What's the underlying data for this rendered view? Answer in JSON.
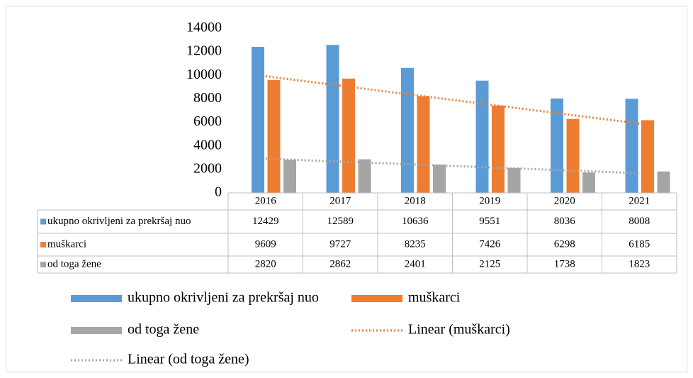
{
  "chart_data": {
    "type": "bar",
    "categories": [
      "2016",
      "2017",
      "2018",
      "2019",
      "2020",
      "2021"
    ],
    "series": [
      {
        "name": "ukupno okrivljeni za prekršaj nuo",
        "color": "#5b9bd5",
        "values": [
          12429,
          12589,
          10636,
          9551,
          8036,
          8008
        ]
      },
      {
        "name": "muškarci",
        "color": "#ed7d31",
        "values": [
          9609,
          9727,
          8235,
          7426,
          6298,
          6185
        ],
        "trendline": {
          "type": "linear",
          "name": "Linear (muškarci)"
        }
      },
      {
        "name": "od toga žene",
        "color": "#a5a5a5",
        "values": [
          2820,
          2862,
          2401,
          2125,
          1738,
          1823
        ],
        "trendline": {
          "type": "linear",
          "name": "Linear (od toga žene)"
        }
      }
    ],
    "ylim": [
      0,
      14000
    ],
    "yticks": [
      0,
      2000,
      4000,
      6000,
      8000,
      10000,
      12000,
      14000
    ],
    "data_table": true,
    "grid": false
  }
}
